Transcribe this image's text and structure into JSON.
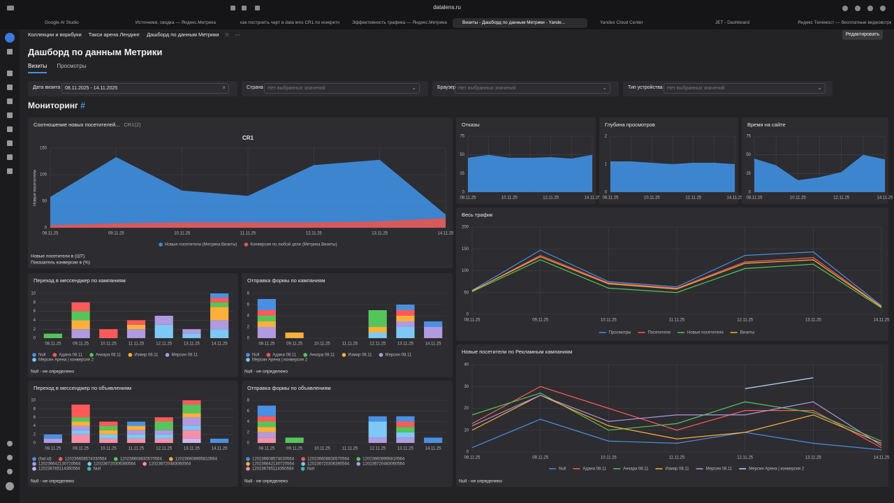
{
  "browser": {
    "address": "datalens.ru",
    "tabs": [
      "Google AI Studio",
      "Источники, сводка — Яндекс.Метрика",
      "как построить чарт в data lens CR1 по конкретн",
      "Эффективность трафика — Яндекс.Метрика",
      "Визиты - Дашборд по данным Метрики - Yande...",
      "Yandex Cloud Center",
      "JET - Dashboard",
      "Яндекс Телемост — бесплатные видеовстрече..."
    ]
  },
  "breadcrumbs": [
    "Коллекции и воркбуки",
    "Такси арена Лендинг",
    "Дашборд по данным Метрики"
  ],
  "edit_button": "Редактировать",
  "title": "Дашборд по данным Метрики",
  "tabs": [
    "Визиты",
    "Просмотры"
  ],
  "filters": [
    {
      "label": "Дата визита",
      "value": "08.11.2025 - 14.11.2025"
    },
    {
      "label": "Страна",
      "value": "Нет выбранных значений"
    },
    {
      "label": "Браузер",
      "value": "Нет выбранных значений"
    },
    {
      "label": "Тип устройства",
      "value": "Нет выбранных значений"
    }
  ],
  "section": "Мониторинг",
  "section_anchor": "#",
  "charts": [
    {
      "type": "area",
      "title": "Соотношение новых посетителей...",
      "subtitle": "CR1(2)",
      "chart_title": "CR1",
      "y_label": "Новые посетители",
      "categories": [
        "08.11.25",
        "09.11.25",
        "10.11.25",
        "11.11.25",
        "12.11.25",
        "13.11.25",
        "14.11.25"
      ],
      "series": [
        {
          "name": "Новые посетители (Метрика Визиты)",
          "color": "#3f8ad8",
          "values": [
            58,
            133,
            70,
            60,
            118,
            128,
            25
          ]
        },
        {
          "name": "Конверсия по любой цели (Метрика Визиты)",
          "color": "#e8544f",
          "values": [
            5,
            8,
            10,
            10,
            10,
            12,
            18
          ]
        }
      ],
      "ylim": [
        0,
        150
      ],
      "yticks": [
        0,
        50,
        100,
        150
      ],
      "grid": true,
      "notes": [
        "Новые посетители в (ШТ)",
        "Показатель конверсии в (%)"
      ]
    },
    {
      "type": "area",
      "title": "Отказы",
      "categories": [
        "08.11.25",
        null,
        "10.11.25",
        null,
        "12.11.25",
        null,
        "14.11.25"
      ],
      "series": [
        {
          "color": "#3f8ad8",
          "values": [
            46,
            50,
            46,
            46,
            47,
            45,
            50
          ]
        }
      ],
      "ylim": [
        0,
        75
      ],
      "yticks": [
        0,
        25,
        50,
        75
      ],
      "grid": true
    },
    {
      "type": "area",
      "title": "Глубина просмотров",
      "categories": [
        "08.11.25",
        null,
        "10.11.25",
        null,
        "12.11.25",
        null,
        "14.11.25"
      ],
      "series": [
        {
          "color": "#3f8ad8",
          "values": [
            1.1,
            1.1,
            1.05,
            1.0,
            1.05,
            1.05,
            1.0
          ]
        }
      ],
      "ylim": [
        0,
        2
      ],
      "yticks": [
        0,
        1,
        2
      ],
      "grid": true
    },
    {
      "type": "area",
      "title": "Время на сайте",
      "categories": [
        "08.11.25",
        null,
        "10.11.25",
        null,
        "12.11.25",
        null,
        "14.11.25"
      ],
      "series": [
        {
          "color": "#3f8ad8",
          "values": [
            45,
            36,
            16,
            20,
            27,
            50,
            44
          ]
        }
      ],
      "ylim": [
        0,
        75
      ],
      "yticks": [
        0,
        25,
        50,
        75
      ],
      "grid": true
    },
    {
      "type": "line",
      "title": "Весь трафик",
      "categories": [
        "08.11.25",
        "09.11.25",
        "10.11.25",
        "11.11.25",
        "12.11.25",
        "13.11.25",
        "14.11.25"
      ],
      "series": [
        {
          "name": "Просмотры",
          "color": "#4a90e2",
          "values": [
            55,
            147,
            75,
            63,
            135,
            143,
            20
          ]
        },
        {
          "name": "Посетители",
          "color": "#ff5a5a",
          "values": [
            53,
            135,
            72,
            60,
            120,
            130,
            18
          ]
        },
        {
          "name": "Новые посетители",
          "color": "#55c55b",
          "values": [
            52,
            125,
            60,
            50,
            105,
            115,
            15
          ]
        },
        {
          "name": "Визиты",
          "color": "#fbb03b",
          "values": [
            54,
            132,
            70,
            58,
            117,
            125,
            17
          ]
        }
      ],
      "ylim": [
        0,
        200
      ],
      "yticks": [
        0,
        50,
        100,
        150,
        200
      ],
      "grid": true
    },
    {
      "type": "stacked-bar",
      "title": "Переход в мессенджер по кампаниям",
      "categories": [
        "08.11.25",
        "09.11.25",
        "10.11.25",
        "11.11.25",
        "12.11.25",
        "13.11.25",
        "14.11.25"
      ],
      "series": [
        {
          "name": "Null",
          "color": "#4a90e2",
          "values": [
            0,
            0,
            0,
            0,
            0,
            0,
            1
          ]
        },
        {
          "name": "Адана 08.11",
          "color": "#ff5a5a",
          "values": [
            0,
            2,
            2,
            1,
            0,
            0,
            1
          ]
        },
        {
          "name": "Анкара 08.11",
          "color": "#55c55b",
          "values": [
            1,
            2,
            0,
            0,
            0,
            0,
            1
          ]
        },
        {
          "name": "Измир 08.11",
          "color": "#fbb03b",
          "values": [
            0,
            2,
            0,
            1,
            0,
            0,
            3
          ]
        },
        {
          "name": "Мерсин 08.11",
          "color": "#b09ae0",
          "values": [
            0,
            2,
            0,
            2,
            2,
            1,
            2
          ]
        },
        {
          "name": "Мерсин Арена | конверсия 2",
          "color": "#7ec8f5",
          "values": [
            0,
            0,
            0,
            0,
            3,
            1,
            2
          ]
        }
      ],
      "ylim": [
        0,
        10
      ],
      "yticks": [
        0,
        2,
        4,
        6,
        8,
        10
      ],
      "grid": true,
      "notes": [
        "Null - не определено"
      ]
    },
    {
      "type": "stacked-bar",
      "title": "Отправка формы по кампаниям",
      "categories": [
        "08.11.25",
        "09.11.25",
        "10.11.25",
        "11.11.25",
        "12.11.25",
        "13.11.25",
        "14.11.25"
      ],
      "series": [
        {
          "name": "Null",
          "color": "#4a90e2",
          "values": [
            2,
            0,
            0,
            0,
            0,
            1,
            1
          ]
        },
        {
          "name": "Адана 08.11",
          "color": "#ff5a5a",
          "values": [
            1,
            0,
            0,
            0,
            0,
            1,
            0
          ]
        },
        {
          "name": "Анкара 08.11",
          "color": "#55c55b",
          "values": [
            1,
            0,
            0,
            0,
            3,
            0,
            0
          ]
        },
        {
          "name": "Измир 08.11",
          "color": "#fbb03b",
          "values": [
            1,
            1,
            0,
            0,
            1,
            1,
            0
          ]
        },
        {
          "name": "Мерсин 08.11",
          "color": "#b09ae0",
          "values": [
            2,
            0,
            0,
            0,
            0,
            1,
            2
          ]
        },
        {
          "name": "Мерсин Арена | конверсия 2",
          "color": "#7ec8f5",
          "values": [
            0,
            0,
            0,
            0,
            1,
            2,
            0
          ]
        }
      ],
      "ylim": [
        0,
        8
      ],
      "yticks": [
        0,
        2,
        4,
        6,
        8
      ],
      "grid": true,
      "notes": [
        "Null - не определено"
      ]
    },
    {
      "type": "stacked-bar",
      "title": "Переход в мессенджер по объявлениям",
      "categories": [
        "08.11.25",
        "09.11.25",
        "10.11.25",
        "11.11.25",
        "12.11.25",
        "13.11.25",
        "14.11.25"
      ],
      "series": [
        {
          "name": "(fad.id)",
          "color": "#4a90e2",
          "values": [
            1,
            0,
            0,
            1,
            0,
            0,
            1
          ]
        },
        {
          "name": "120236608574030564",
          "color": "#ff5a5a",
          "values": [
            0,
            3,
            1,
            0,
            1,
            1,
            0
          ]
        },
        {
          "name": "120236608830570564",
          "color": "#55c55b",
          "values": [
            0,
            1,
            1,
            0,
            2,
            2,
            0
          ]
        },
        {
          "name": "120236608995810564",
          "color": "#fbb03b",
          "values": [
            0,
            1,
            1,
            1,
            0,
            1,
            0
          ]
        },
        {
          "name": "120236642130720564",
          "color": "#b09ae0",
          "values": [
            1,
            1,
            0,
            1,
            1,
            2,
            0
          ]
        },
        {
          "name": "120236720306380564",
          "color": "#7ec8f5",
          "values": [
            0,
            1,
            1,
            1,
            1,
            1,
            0
          ]
        },
        {
          "name": "120236720483060564",
          "color": "#f58fa8",
          "values": [
            0,
            2,
            1,
            1,
            1,
            2,
            0
          ]
        },
        {
          "name": "120236785114350564",
          "color": "#c9b8f0",
          "values": [
            0,
            0,
            0,
            0,
            0,
            1,
            0
          ]
        },
        {
          "name": "Null",
          "color": "#3bb8a5",
          "values": [
            0,
            0,
            0,
            0,
            0,
            0,
            0
          ]
        }
      ],
      "ylim": [
        0,
        10
      ],
      "yticks": [
        0,
        2,
        4,
        6,
        8,
        10
      ],
      "grid": true,
      "notes": [
        "Null - не определено"
      ]
    },
    {
      "type": "stacked-bar",
      "title": "Отправка формы по объявлениям",
      "categories": [
        "08.11.25",
        "09.11.25",
        "10.11.25",
        "11.11.25",
        "12.11.25",
        "13.11.25",
        "14.11.25"
      ],
      "series": [
        {
          "name": "120236608574030564",
          "color": "#4a90e2",
          "values": [
            2,
            0,
            0,
            0,
            1,
            1,
            1
          ]
        },
        {
          "name": "120236608830570564",
          "color": "#ff5a5a",
          "values": [
            1,
            0,
            0,
            0,
            0,
            1,
            0
          ]
        },
        {
          "name": "120236608995810564",
          "color": "#55c55b",
          "values": [
            1,
            1,
            0,
            0,
            0,
            1,
            0
          ]
        },
        {
          "name": "120236642130720564",
          "color": "#fbb03b",
          "values": [
            1,
            0,
            0,
            0,
            0,
            0,
            0
          ]
        },
        {
          "name": "120236720306380564",
          "color": "#7ec8f5",
          "values": [
            0,
            0,
            0,
            0,
            3,
            1,
            0
          ]
        },
        {
          "name": "120236720483060564",
          "color": "#b09ae0",
          "values": [
            1,
            0,
            0,
            0,
            1,
            1,
            0
          ]
        },
        {
          "name": "120236785114350564",
          "color": "#f58fa8",
          "values": [
            1,
            0,
            0,
            0,
            0,
            0,
            0
          ]
        },
        {
          "name": "Null",
          "color": "#3bb8a5",
          "values": [
            0,
            0,
            0,
            0,
            0,
            0,
            0
          ]
        }
      ],
      "ylim": [
        0,
        8
      ],
      "yticks": [
        0,
        2,
        4,
        6,
        8
      ],
      "grid": true,
      "notes": [
        "Null - не определено"
      ]
    },
    {
      "type": "line",
      "title": "Новые посетители по Рекламным кампаниям",
      "categories": [
        "08.11.25",
        "09.11.25",
        "10.11.25",
        "11.11.25",
        "12.11.25",
        "13.11.25",
        "14.11.25"
      ],
      "series": [
        {
          "name": "Null",
          "color": "#4a90e2",
          "values": [
            2,
            15,
            5,
            4,
            9,
            4,
            1
          ]
        },
        {
          "name": "Адана 08.11",
          "color": "#ff5a5a",
          "values": [
            13,
            30,
            20,
            10,
            19,
            19,
            2
          ]
        },
        {
          "name": "Анкара 08.11",
          "color": "#55c55b",
          "values": [
            17,
            27,
            10,
            13,
            23,
            18,
            5
          ]
        },
        {
          "name": "Измир 08.11",
          "color": "#fbb03b",
          "values": [
            10,
            26,
            12,
            6,
            9,
            17,
            4
          ]
        },
        {
          "name": "Мерсин 08.11",
          "color": "#b09ae0",
          "values": [
            12,
            26,
            14,
            17,
            17,
            23,
            3
          ]
        },
        {
          "name": "Мерсин Арена | конверсия 2",
          "color": "#b8dcf8",
          "values": [
            null,
            null,
            null,
            null,
            29,
            34,
            null
          ]
        }
      ],
      "ylim": [
        0,
        40
      ],
      "yticks": [
        0,
        10,
        20,
        30,
        40
      ],
      "grid": true,
      "notes": [
        "Null - не определено"
      ]
    }
  ]
}
